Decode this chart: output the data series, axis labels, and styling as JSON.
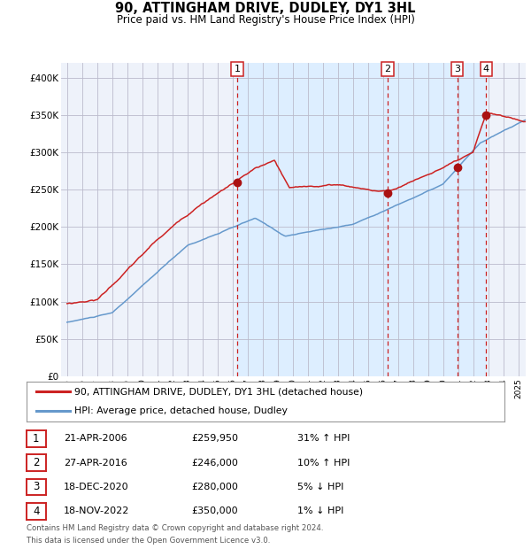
{
  "title": "90, ATTINGHAM DRIVE, DUDLEY, DY1 3HL",
  "subtitle": "Price paid vs. HM Land Registry's House Price Index (HPI)",
  "legend_line1": "90, ATTINGHAM DRIVE, DUDLEY, DY1 3HL (detached house)",
  "legend_line2": "HPI: Average price, detached house, Dudley",
  "footer1": "Contains HM Land Registry data © Crown copyright and database right 2024.",
  "footer2": "This data is licensed under the Open Government Licence v3.0.",
  "table": [
    {
      "num": "1",
      "date": "21-APR-2006",
      "price": "£259,950",
      "hpi": "31% ↑ HPI"
    },
    {
      "num": "2",
      "date": "27-APR-2016",
      "price": "£246,000",
      "hpi": "10% ↑ HPI"
    },
    {
      "num": "3",
      "date": "18-DEC-2020",
      "price": "£280,000",
      "hpi": "5% ↓ HPI"
    },
    {
      "num": "4",
      "date": "18-NOV-2022",
      "price": "£350,000",
      "hpi": "1% ↓ HPI"
    }
  ],
  "sale_years": [
    2006.31,
    2016.32,
    2020.96,
    2022.88
  ],
  "sale_prices": [
    259950,
    246000,
    280000,
    350000
  ],
  "hpi_color": "#6699cc",
  "price_color": "#cc2222",
  "dot_color": "#aa1111",
  "vline_color": "#cc2222",
  "shade_color": "#ddeeff",
  "background_color": "#eef2fa",
  "grid_color": "#bbbbcc",
  "ylim": [
    0,
    420000
  ],
  "xlim": [
    1994.6,
    2025.5
  ],
  "yticks": [
    0,
    50000,
    100000,
    150000,
    200000,
    250000,
    300000,
    350000,
    400000
  ],
  "ytick_labels": [
    "£0",
    "£50K",
    "£100K",
    "£150K",
    "£200K",
    "£250K",
    "£300K",
    "£350K",
    "£400K"
  ],
  "xticks": [
    1995,
    1996,
    1997,
    1998,
    1999,
    2000,
    2001,
    2002,
    2003,
    2004,
    2005,
    2006,
    2007,
    2008,
    2009,
    2010,
    2011,
    2012,
    2013,
    2014,
    2015,
    2016,
    2017,
    2018,
    2019,
    2020,
    2021,
    2022,
    2023,
    2024,
    2025
  ]
}
